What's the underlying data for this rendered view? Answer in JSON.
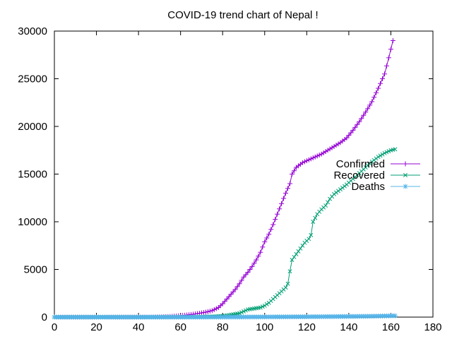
{
  "chart_data": {
    "type": "line",
    "title": "COVID-19 trend chart of Nepal !",
    "xlabel": "",
    "ylabel": "",
    "xlim": [
      0,
      180
    ],
    "ylim": [
      0,
      30000
    ],
    "xticks": [
      0,
      20,
      40,
      60,
      80,
      100,
      120,
      140,
      160,
      180
    ],
    "yticks": [
      0,
      5000,
      10000,
      15000,
      20000,
      25000,
      30000
    ],
    "grid": false,
    "legend_position": "right",
    "series": [
      {
        "name": "Confirmed",
        "color": "#9400d3",
        "marker": "plus",
        "points": [
          [
            0,
            0
          ],
          [
            10,
            1
          ],
          [
            20,
            1
          ],
          [
            30,
            2
          ],
          [
            40,
            5
          ],
          [
            50,
            20
          ],
          [
            55,
            60
          ],
          [
            60,
            150
          ],
          [
            63,
            220
          ],
          [
            66,
            300
          ],
          [
            69,
            400
          ],
          [
            72,
            520
          ],
          [
            75,
            680
          ],
          [
            78,
            1000
          ],
          [
            80,
            1400
          ],
          [
            82,
            1900
          ],
          [
            84,
            2400
          ],
          [
            86,
            2900
          ],
          [
            88,
            3500
          ],
          [
            90,
            4200
          ],
          [
            92,
            4700
          ],
          [
            94,
            5300
          ],
          [
            96,
            6000
          ],
          [
            98,
            6800
          ],
          [
            100,
            7900
          ],
          [
            102,
            8700
          ],
          [
            104,
            9700
          ],
          [
            106,
            10800
          ],
          [
            108,
            11900
          ],
          [
            110,
            13000
          ],
          [
            112,
            14000
          ],
          [
            113,
            15000
          ],
          [
            115,
            15700
          ],
          [
            118,
            16200
          ],
          [
            121,
            16500
          ],
          [
            124,
            16800
          ],
          [
            127,
            17100
          ],
          [
            130,
            17500
          ],
          [
            133,
            17900
          ],
          [
            136,
            18300
          ],
          [
            139,
            18800
          ],
          [
            142,
            19600
          ],
          [
            145,
            20500
          ],
          [
            148,
            21500
          ],
          [
            151,
            22600
          ],
          [
            154,
            24000
          ],
          [
            157,
            25500
          ],
          [
            159,
            27200
          ],
          [
            161,
            29000
          ]
        ]
      },
      {
        "name": "Recovered",
        "color": "#009e73",
        "marker": "x",
        "points": [
          [
            0,
            0
          ],
          [
            20,
            0
          ],
          [
            40,
            0
          ],
          [
            60,
            8
          ],
          [
            70,
            25
          ],
          [
            76,
            60
          ],
          [
            80,
            120
          ],
          [
            84,
            250
          ],
          [
            88,
            400
          ],
          [
            90,
            600
          ],
          [
            92,
            800
          ],
          [
            95,
            900
          ],
          [
            98,
            1000
          ],
          [
            100,
            1200
          ],
          [
            102,
            1500
          ],
          [
            104,
            1900
          ],
          [
            106,
            2300
          ],
          [
            108,
            2700
          ],
          [
            110,
            3100
          ],
          [
            111,
            3500
          ],
          [
            112,
            4800
          ],
          [
            113,
            6000
          ],
          [
            115,
            6600
          ],
          [
            117,
            7200
          ],
          [
            119,
            7800
          ],
          [
            121,
            8200
          ],
          [
            122,
            8600
          ],
          [
            123,
            10000
          ],
          [
            125,
            10800
          ],
          [
            127,
            11300
          ],
          [
            129,
            11700
          ],
          [
            131,
            12400
          ],
          [
            133,
            12900
          ],
          [
            136,
            13400
          ],
          [
            139,
            13900
          ],
          [
            142,
            14500
          ],
          [
            145,
            15100
          ],
          [
            148,
            15700
          ],
          [
            151,
            16300
          ],
          [
            154,
            16800
          ],
          [
            157,
            17200
          ],
          [
            160,
            17500
          ],
          [
            162,
            17600
          ]
        ]
      },
      {
        "name": "Deaths",
        "color": "#56b4e9",
        "marker": "star",
        "points": [
          [
            0,
            0
          ],
          [
            40,
            0
          ],
          [
            60,
            0
          ],
          [
            80,
            5
          ],
          [
            100,
            20
          ],
          [
            110,
            30
          ],
          [
            120,
            40
          ],
          [
            130,
            55
          ],
          [
            140,
            70
          ],
          [
            150,
            90
          ],
          [
            155,
            110
          ],
          [
            160,
            130
          ],
          [
            162,
            140
          ]
        ]
      }
    ]
  }
}
